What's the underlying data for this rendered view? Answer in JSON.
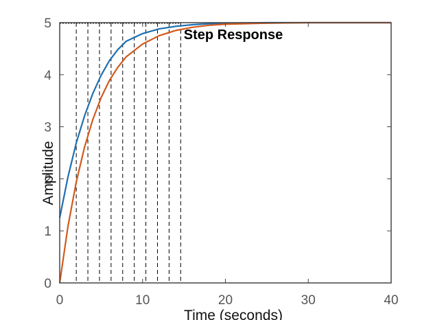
{
  "chart_data": {
    "type": "line",
    "title": "Step Response",
    "xlabel": "Time (seconds)",
    "ylabel": "Amplitude",
    "xlim": [
      0,
      40
    ],
    "ylim": [
      0,
      5
    ],
    "xticks": [
      "0",
      "10",
      "20",
      "30",
      "40"
    ],
    "yticks": [
      "0",
      "1",
      "2",
      "3",
      "4",
      "5"
    ],
    "grid": false,
    "legend": "none",
    "series": [
      {
        "color": "#1f6fb0",
        "x": [
          0,
          1,
          2,
          3,
          4,
          5,
          6,
          7,
          8,
          10,
          12,
          14,
          16,
          18,
          20,
          25,
          30,
          35,
          40
        ],
        "y": [
          1.25,
          2.04,
          2.69,
          3.21,
          3.64,
          3.99,
          4.27,
          4.48,
          4.64,
          4.79,
          4.88,
          4.93,
          4.96,
          4.98,
          4.99,
          5.0,
          5.0,
          5.0,
          5.0
        ]
      },
      {
        "color": "#d2591c",
        "x": [
          0,
          1,
          2,
          3,
          4,
          5,
          6,
          7,
          8,
          10,
          12,
          14,
          16,
          18,
          20,
          25,
          30,
          35,
          40
        ],
        "y": [
          0,
          1.09,
          1.94,
          2.61,
          3.14,
          3.56,
          3.89,
          4.14,
          4.34,
          4.59,
          4.75,
          4.85,
          4.91,
          4.95,
          4.97,
          4.99,
          5.0,
          5.0,
          5.0
        ]
      }
    ],
    "annotations": {
      "vertical_dashed_x": [
        2,
        3.4,
        4.8,
        6.2,
        7.6,
        9.0,
        10.4,
        11.8,
        13.2,
        14.6
      ],
      "dashed_top_y": 5
    }
  }
}
